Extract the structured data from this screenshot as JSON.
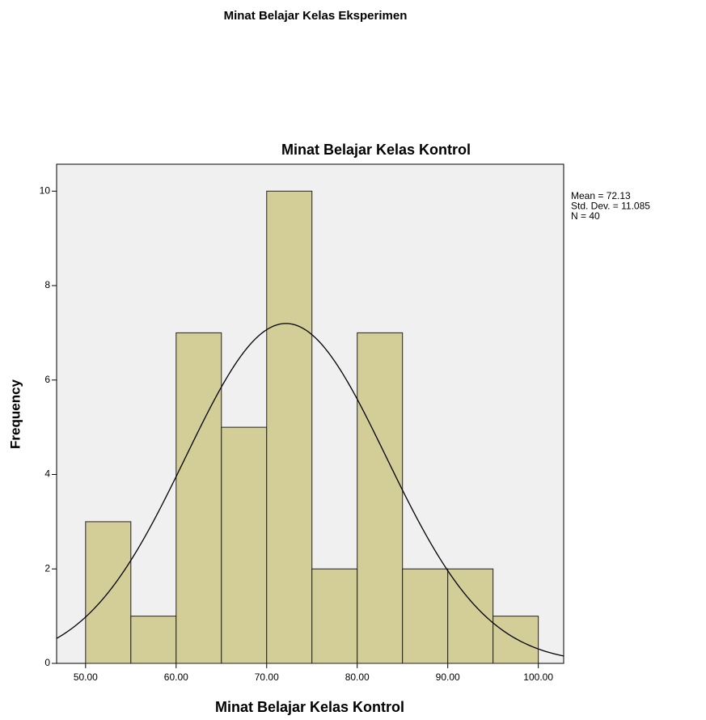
{
  "chart_data": {
    "type": "histogram",
    "header": "Minat Belajar Kelas Eksperimen",
    "title": "Minat Belajar Kelas Kontrol",
    "x_label": "Minat Belajar Kelas Kontrol",
    "y_label": "Frequency",
    "bins": [
      50,
      55,
      60,
      65,
      70,
      75,
      80,
      85,
      90,
      95,
      100
    ],
    "values": [
      3,
      1,
      7,
      5,
      10,
      2,
      7,
      2,
      2,
      1
    ],
    "color": "#d3ce98",
    "xlim": [
      46.8,
      102.8
    ],
    "ylim": [
      0,
      10.57
    ],
    "xticks": [
      {
        "value": 50,
        "label": "50.00"
      },
      {
        "value": 60,
        "label": "60.00"
      },
      {
        "value": 70,
        "label": "70.00"
      },
      {
        "value": 80,
        "label": "80.00"
      },
      {
        "value": 90,
        "label": "90.00"
      },
      {
        "value": 100,
        "label": "100.00"
      }
    ],
    "yticks": [
      0,
      2,
      4,
      6,
      8,
      10
    ],
    "stats": [
      {
        "label": "Mean = 72.13",
        "value": 72.13
      },
      {
        "label": "Std. Dev. = 11.085",
        "value": 11.085
      },
      {
        "label": "N = 40",
        "value": 40
      }
    ]
  }
}
